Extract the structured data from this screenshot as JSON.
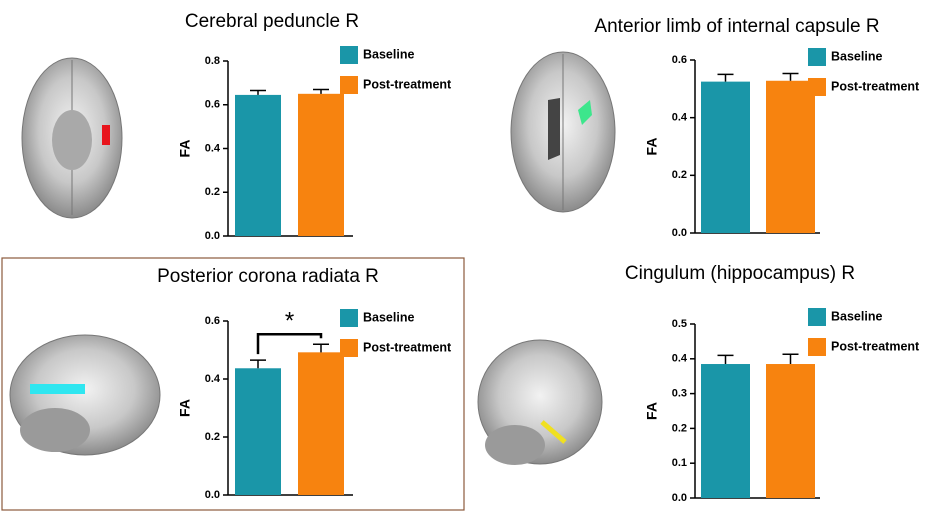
{
  "chart_data": [
    {
      "type": "bar",
      "title": "Cerebral peduncle R",
      "ylabel": "FA",
      "ylim": [
        0,
        0.8
      ],
      "yticks": [
        {
          "value": 0,
          "label": "0.0"
        },
        0.2,
        0.4,
        0.6,
        0.8
      ],
      "series": [
        {
          "name": "Baseline",
          "color": "#1a96a8",
          "values": [
            0.645
          ],
          "errors": [
            0.02
          ]
        },
        {
          "name": "Post-treatment",
          "color": "#f7830f",
          "values": [
            0.65
          ],
          "errors": [
            0.02
          ]
        }
      ]
    },
    {
      "type": "bar",
      "title": "Anterior limb of internal capsule R",
      "ylabel": "FA",
      "ylim": [
        0,
        0.6
      ],
      "yticks": [
        {
          "value": 0,
          "label": "0.0"
        },
        0.2,
        0.4,
        0.6
      ],
      "series": [
        {
          "name": "Baseline",
          "color": "#1a96a8",
          "values": [
            0.525
          ],
          "errors": [
            0.025
          ]
        },
        {
          "name": "Post-treatment",
          "color": "#f7830f",
          "values": [
            0.528
          ],
          "errors": [
            0.025
          ]
        }
      ]
    },
    {
      "type": "bar",
      "title": "Posterior corona radiata R",
      "ylabel": "FA",
      "annotation": "*",
      "ylim": [
        0,
        0.6
      ],
      "yticks": [
        {
          "value": 0,
          "label": "0.0"
        },
        0.2,
        0.4,
        0.6
      ],
      "series": [
        {
          "name": "Baseline",
          "color": "#1a96a8",
          "values": [
            0.437
          ],
          "errors": [
            0.028
          ]
        },
        {
          "name": "Post-treatment",
          "color": "#f7830f",
          "values": [
            0.492
          ],
          "errors": [
            0.028
          ]
        }
      ]
    },
    {
      "type": "bar",
      "title": "Cingulum (hippocampus) R",
      "ylabel": "FA",
      "ylim": [
        0,
        0.5
      ],
      "yticks": [
        {
          "value": 0,
          "label": "0.0"
        },
        0.1,
        0.2,
        0.3,
        0.4,
        0.5
      ],
      "series": [
        {
          "name": "Baseline",
          "color": "#1a96a8",
          "values": [
            0.385
          ],
          "errors": [
            0.025
          ]
        },
        {
          "name": "Post-treatment",
          "color": "#f7830f",
          "values": [
            0.385
          ],
          "errors": [
            0.028
          ]
        }
      ]
    }
  ]
}
